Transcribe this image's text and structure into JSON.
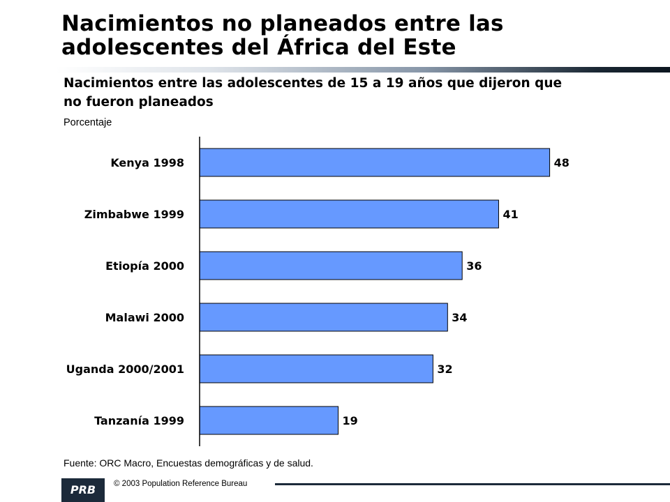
{
  "title": {
    "line1": "Nacimientos no planeados entre las",
    "line2": "adolescentes del África del Este"
  },
  "subtitle": {
    "line1": "Nacimientos entre las adolescentes de 15 a 19 años que dijeron que",
    "line2": "no fueron planeados"
  },
  "unit_label": "Porcentaje",
  "source": "Fuente: ORC Macro, Encuestas demográficas y de salud.",
  "footer": {
    "copyright": "© 2003  Population Reference Bureau",
    "logo_text": "PRB"
  },
  "colors": {
    "bar_fill": "#6699ff",
    "bar_stroke": "#000000",
    "axis": "#000000",
    "rule_dark": "#1c2a3a"
  },
  "chart_data": {
    "type": "bar",
    "orientation": "horizontal",
    "categories": [
      "Kenya 1998",
      "Zimbabwe 1999",
      "Etiopía 2000",
      "Malawi 2000",
      "Uganda 2000/2001",
      "Tanzanía 1999"
    ],
    "values": [
      48,
      41,
      36,
      34,
      32,
      19
    ],
    "xlim": [
      0,
      55
    ],
    "ylabel": "Porcentaje",
    "grid": false,
    "legend": "none",
    "data_labels": true
  }
}
